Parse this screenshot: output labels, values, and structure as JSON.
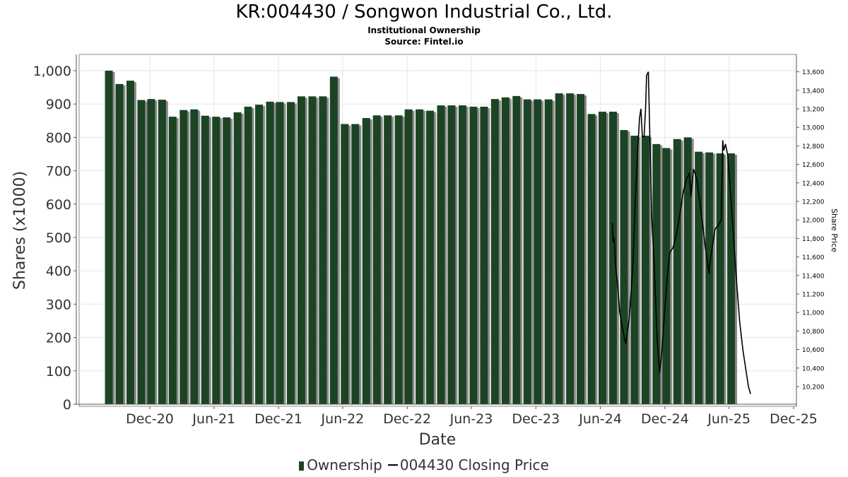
{
  "header": {
    "title": "KR:004430 / Songwon Industrial Co., Ltd.",
    "subtitle": "Institutional Ownership",
    "source": "Source: Fintel.io"
  },
  "legend": {
    "ownership_label": "Ownership",
    "price_label": "004430 Closing Price"
  },
  "colors": {
    "bar": "#1c4424",
    "bar_shadow": "#8c8c8c",
    "line": "#000000",
    "grid": "#e6e6e6"
  },
  "chart_data": {
    "type": "bar",
    "xlabel": "Date",
    "ylabel": "Shares (x1000)",
    "y2label": "Share Price",
    "ylim": [
      0,
      1050
    ],
    "y2lim": [
      10050,
      13750
    ],
    "yticks": [
      0,
      100,
      200,
      300,
      400,
      500,
      600,
      700,
      800,
      900,
      1000
    ],
    "ytick_labels": [
      "0",
      "100",
      "200",
      "300",
      "400",
      "500",
      "600",
      "700",
      "800",
      "900",
      "1,000"
    ],
    "y2ticks": [
      10200,
      10400,
      10600,
      10800,
      11000,
      11200,
      11400,
      11600,
      11800,
      12000,
      12200,
      12400,
      12600,
      12800,
      13000,
      13200,
      13400,
      13600
    ],
    "y2tick_labels": [
      "10,200",
      "10,400",
      "10,600",
      "10,800",
      "11,000",
      "11,200",
      "11,400",
      "11,600",
      "11,800",
      "12,000",
      "12,200",
      "12,400",
      "12,600",
      "12,800",
      "13,000",
      "13,200",
      "13,400",
      "13,600"
    ],
    "xlim": [
      "2020-09-15",
      "2025-12-31"
    ],
    "xticks": [
      {
        "label": "Dec-20",
        "date": "2020-12-01"
      },
      {
        "label": "Jun-21",
        "date": "2021-06-01"
      },
      {
        "label": "Dec-21",
        "date": "2021-12-01"
      },
      {
        "label": "Jun-22",
        "date": "2022-06-01"
      },
      {
        "label": "Dec-22",
        "date": "2022-12-01"
      },
      {
        "label": "Jun-23",
        "date": "2023-06-01"
      },
      {
        "label": "Dec-23",
        "date": "2023-12-01"
      },
      {
        "label": "Jun-24",
        "date": "2024-06-01"
      },
      {
        "label": "Dec-24",
        "date": "2024-12-01"
      },
      {
        "label": "Jun-25",
        "date": "2025-06-01"
      },
      {
        "label": "Dec-25",
        "date": "2025-12-01"
      }
    ],
    "grid": true,
    "legend_position": "bottom",
    "series": [
      {
        "name": "Ownership",
        "type": "bar",
        "dates": [
          "2020-10-31",
          "2020-11-30",
          "2020-12-31",
          "2021-01-31",
          "2021-02-28",
          "2021-03-31",
          "2021-04-30",
          "2021-05-31",
          "2021-06-30",
          "2021-07-31",
          "2021-08-31",
          "2021-09-30",
          "2021-10-31",
          "2021-11-30",
          "2021-12-31",
          "2022-01-31",
          "2022-02-28",
          "2022-03-31",
          "2022-04-30",
          "2022-05-31",
          "2022-06-30",
          "2022-07-31",
          "2022-08-31",
          "2022-09-30",
          "2022-10-31",
          "2022-11-30",
          "2022-12-31",
          "2023-01-31",
          "2023-02-28",
          "2023-03-31",
          "2023-04-30",
          "2023-05-31",
          "2023-06-30",
          "2023-07-31",
          "2023-08-31",
          "2023-09-30",
          "2023-10-31",
          "2023-11-30",
          "2023-12-31",
          "2024-01-31",
          "2024-02-29",
          "2024-03-31",
          "2024-04-30",
          "2024-05-31",
          "2024-06-30",
          "2024-07-31",
          "2024-08-31",
          "2024-09-30",
          "2024-10-31",
          "2024-11-30",
          "2024-12-31",
          "2025-01-31",
          "2025-02-28",
          "2025-03-31",
          "2025-04-30",
          "2025-05-31",
          "2025-06-30",
          "2025-07-31",
          "2025-08-31"
        ],
        "values": [
          1000,
          960,
          970,
          912,
          915,
          913,
          862,
          882,
          884,
          865,
          862,
          860,
          875,
          892,
          898,
          907,
          906,
          906,
          923,
          923,
          923,
          982,
          840,
          840,
          858,
          866,
          866,
          866,
          884,
          884,
          880,
          896,
          896,
          896,
          892,
          892,
          915,
          920,
          924,
          914,
          914,
          914,
          932,
          932,
          930,
          870,
          877,
          877,
          822,
          805,
          805,
          780,
          768,
          795,
          800,
          757,
          755,
          752,
          752
        ]
      },
      {
        "name": "004430 Closing Price",
        "type": "line",
        "points": [
          {
            "date": "2024-07-05",
            "value": 11970
          },
          {
            "date": "2024-07-07",
            "value": 11760
          },
          {
            "date": "2024-07-10",
            "value": 11810
          },
          {
            "date": "2024-07-14",
            "value": 11500
          },
          {
            "date": "2024-07-20",
            "value": 11300
          },
          {
            "date": "2024-07-26",
            "value": 11000
          },
          {
            "date": "2024-08-02",
            "value": 10840
          },
          {
            "date": "2024-08-12",
            "value": 10660
          },
          {
            "date": "2024-08-22",
            "value": 10940
          },
          {
            "date": "2024-09-01",
            "value": 11500
          },
          {
            "date": "2024-09-08",
            "value": 12200
          },
          {
            "date": "2024-09-14",
            "value": 12700
          },
          {
            "date": "2024-09-20",
            "value": 13100
          },
          {
            "date": "2024-09-24",
            "value": 13200
          },
          {
            "date": "2024-09-28",
            "value": 12900
          },
          {
            "date": "2024-10-03",
            "value": 12900
          },
          {
            "date": "2024-10-07",
            "value": 13200
          },
          {
            "date": "2024-10-10",
            "value": 13560
          },
          {
            "date": "2024-10-15",
            "value": 13600
          },
          {
            "date": "2024-10-20",
            "value": 12800
          },
          {
            "date": "2024-10-25",
            "value": 12000
          },
          {
            "date": "2024-11-01",
            "value": 11500
          },
          {
            "date": "2024-11-07",
            "value": 10900
          },
          {
            "date": "2024-11-11",
            "value": 10600
          },
          {
            "date": "2024-11-16",
            "value": 10350
          },
          {
            "date": "2024-11-22",
            "value": 10560
          },
          {
            "date": "2024-11-30",
            "value": 11000
          },
          {
            "date": "2024-12-08",
            "value": 11400
          },
          {
            "date": "2024-12-15",
            "value": 11650
          },
          {
            "date": "2024-12-24",
            "value": 11700
          },
          {
            "date": "2025-01-03",
            "value": 11850
          },
          {
            "date": "2025-01-12",
            "value": 12050
          },
          {
            "date": "2025-01-22",
            "value": 12300
          },
          {
            "date": "2025-02-01",
            "value": 12450
          },
          {
            "date": "2025-02-08",
            "value": 12500
          },
          {
            "date": "2025-02-13",
            "value": 12250
          },
          {
            "date": "2025-02-20",
            "value": 12550
          },
          {
            "date": "2025-03-01",
            "value": 12450
          },
          {
            "date": "2025-03-10",
            "value": 12200
          },
          {
            "date": "2025-03-18",
            "value": 11950
          },
          {
            "date": "2025-03-26",
            "value": 11700
          },
          {
            "date": "2025-04-05",
            "value": 11420
          },
          {
            "date": "2025-04-08",
            "value": 11550
          },
          {
            "date": "2025-04-14",
            "value": 11700
          },
          {
            "date": "2025-04-22",
            "value": 11900
          },
          {
            "date": "2025-05-03",
            "value": 11950
          },
          {
            "date": "2025-05-10",
            "value": 12000
          },
          {
            "date": "2025-05-14",
            "value": 12860
          },
          {
            "date": "2025-05-17",
            "value": 12750
          },
          {
            "date": "2025-05-22",
            "value": 12820
          },
          {
            "date": "2025-05-28",
            "value": 12700
          },
          {
            "date": "2025-06-05",
            "value": 12300
          },
          {
            "date": "2025-06-14",
            "value": 11800
          },
          {
            "date": "2025-06-22",
            "value": 11350
          },
          {
            "date": "2025-07-01",
            "value": 10900
          },
          {
            "date": "2025-07-10",
            "value": 10600
          },
          {
            "date": "2025-07-18",
            "value": 10400
          },
          {
            "date": "2025-07-26",
            "value": 10200
          },
          {
            "date": "2025-08-01",
            "value": 10120
          }
        ]
      }
    ]
  }
}
